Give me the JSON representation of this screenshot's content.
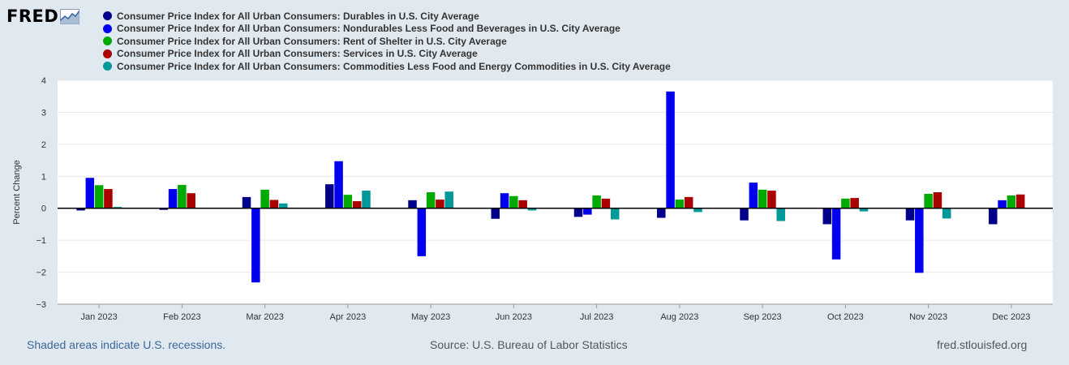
{
  "logo": {
    "text": "FRED",
    "icon": "line-graph-icon"
  },
  "chart_data": {
    "type": "bar",
    "ylabel": "Percent Change",
    "xlabel": "",
    "ylim": [
      -3,
      4
    ],
    "yticks": [
      4,
      3,
      2,
      1,
      0,
      -1,
      -2,
      -3
    ],
    "grid": true,
    "categories": [
      "Jan 2023",
      "Feb 2023",
      "Mar 2023",
      "Apr 2023",
      "May 2023",
      "Jun 2023",
      "Jul 2023",
      "Aug 2023",
      "Sep 2023",
      "Oct 2023",
      "Nov 2023",
      "Dec 2023"
    ],
    "series": [
      {
        "name": "Consumer Price Index for All Urban Consumers: Durables in U.S. City Average",
        "color": "#00008b",
        "values": [
          -0.07,
          -0.05,
          0.35,
          0.75,
          0.25,
          -0.33,
          -0.27,
          -0.3,
          -0.38,
          -0.5,
          -0.38,
          -0.5
        ]
      },
      {
        "name": "Consumer Price Index for All Urban Consumers: Nondurables Less Food and Beverages in U.S. City Average",
        "color": "#0000ee",
        "values": [
          0.95,
          0.6,
          -2.32,
          1.47,
          -1.5,
          0.47,
          -0.2,
          3.65,
          0.8,
          -1.6,
          -2.02,
          0.25
        ]
      },
      {
        "name": "Consumer Price Index for All Urban Consumers: Rent of Shelter in U.S. City Average",
        "color": "#00aa00",
        "values": [
          0.72,
          0.73,
          0.58,
          0.42,
          0.5,
          0.38,
          0.4,
          0.27,
          0.58,
          0.3,
          0.45,
          0.4
        ]
      },
      {
        "name": "Consumer Price Index for All Urban Consumers: Services in U.S. City Average",
        "color": "#aa0000",
        "values": [
          0.6,
          0.47,
          0.26,
          0.22,
          0.27,
          0.25,
          0.3,
          0.35,
          0.55,
          0.32,
          0.5,
          0.43
        ]
      },
      {
        "name": "Consumer Price Index for All Urban Consumers: Commodities Less Food and Energy Commodities in U.S. City Average",
        "color": "#009999",
        "values": [
          0.04,
          0.0,
          0.15,
          0.55,
          0.52,
          -0.07,
          -0.35,
          -0.12,
          -0.4,
          -0.1,
          -0.32,
          0.0
        ]
      }
    ]
  },
  "footer": {
    "recessions_note": "Shaded areas indicate U.S. recessions.",
    "source": "Source: U.S. Bureau of Labor Statistics",
    "site": "fred.stlouisfed.org"
  }
}
